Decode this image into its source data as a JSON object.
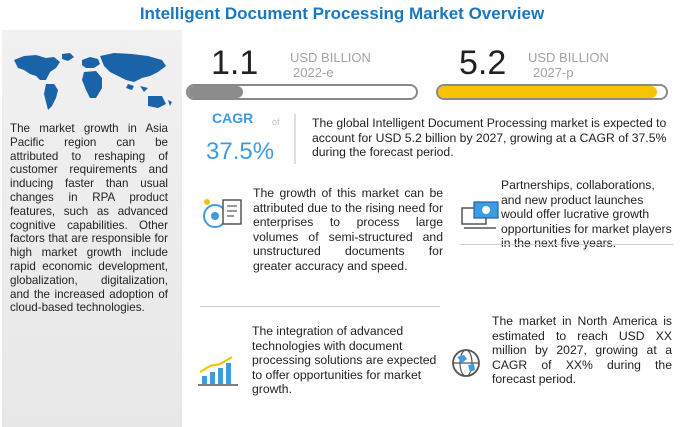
{
  "title": "Intelligent Document Processing Market Overview",
  "colors": {
    "title": "#1a78c2",
    "accent_blue": "#3f9be0",
    "gray_bar": "#8c8c8c",
    "yellow_bar": "#f7c200",
    "unit_gray": "#a3a3a3"
  },
  "left_panel": {
    "map_icon": "world-map-icon",
    "text": "The market growth in Asia Pacific region can be attributed to reshaping of customer requirements and inducing faster than usual changes in RPA product features, such as advanced cognitive capabilities. Other factors that are responsible for high market growth include rapid economic development, globalization, digitalization, and the increased adoption of cloud-based technologies."
  },
  "stat_2022": {
    "value": "1.1",
    "unit": "USD BILLION",
    "year": "2022-e",
    "fill": 0.24
  },
  "stat_2027": {
    "value": "5.2",
    "unit": "USD BILLION",
    "year": "2027-p",
    "fill": 0.96
  },
  "cagr": {
    "label": "CAGR",
    "value": "37.5%",
    "of": "of"
  },
  "summary": "The global Intelligent Document Processing market is expected to account for USD 5.2 billion by 2027, growing at a CAGR of 37.5% during the forecast period.",
  "insights": [
    {
      "icon": "document-processing-icon",
      "text": "The growth of this market can be attributed due to the rising need for enterprises to process large volumes of semi-structured and unstructured documents for greater accuracy and speed."
    },
    {
      "icon": "partnership-icon",
      "text": "Partnerships, collaborations, and new product launches would offer lucrative growth opportunities for market players in the next five years."
    },
    {
      "icon": "growth-chart-icon",
      "text": "The integration of advanced technologies with document processing solutions are expected to offer opportunities for market growth."
    },
    {
      "icon": "globe-icon",
      "text": "The market in North America is estimated to reach USD XX million by 2027, growing at a CAGR of XX% during the forecast period."
    }
  ]
}
